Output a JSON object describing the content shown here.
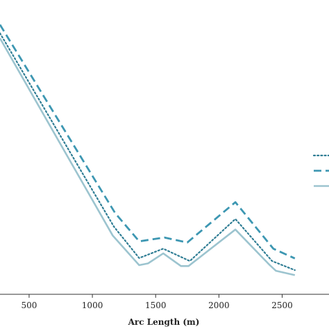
{
  "chart_data": {
    "type": "line",
    "title": "",
    "xlabel": "Arc Length (m)",
    "ylabel": "",
    "xlim": [
      270,
      2870
    ],
    "ylim": [
      0,
      100
    ],
    "x_ticks": [
      500,
      1000,
      1500,
      2000,
      2500
    ],
    "grid": false,
    "legend": {
      "placement": "right",
      "entries": [
        "",
        "",
        ""
      ]
    },
    "series": [
      {
        "style": "dotted",
        "color": "#2f7d94",
        "x": [
          270,
          1170,
          1370,
          1560,
          1770,
          2130,
          2420,
          2600
        ],
        "y": [
          88.7,
          23.0,
          12.3,
          15.5,
          11.3,
          25.6,
          11.3,
          8.2
        ]
      },
      {
        "style": "dashed",
        "color": "#3d97b2",
        "x": [
          270,
          1180,
          1370,
          1570,
          1750,
          2130,
          2430,
          2600
        ],
        "y": [
          91.6,
          27.6,
          18.0,
          19.3,
          17.6,
          31.3,
          15.5,
          12.2
        ]
      },
      {
        "style": "solid",
        "color": "#9cc4cf",
        "x": [
          270,
          1160,
          1370,
          1440,
          1560,
          1700,
          1760,
          2130,
          2400,
          2450,
          2600
        ],
        "y": [
          87.0,
          20.0,
          9.9,
          10.5,
          13.9,
          9.6,
          9.6,
          22.0,
          10.0,
          8.0,
          6.5
        ]
      }
    ]
  }
}
